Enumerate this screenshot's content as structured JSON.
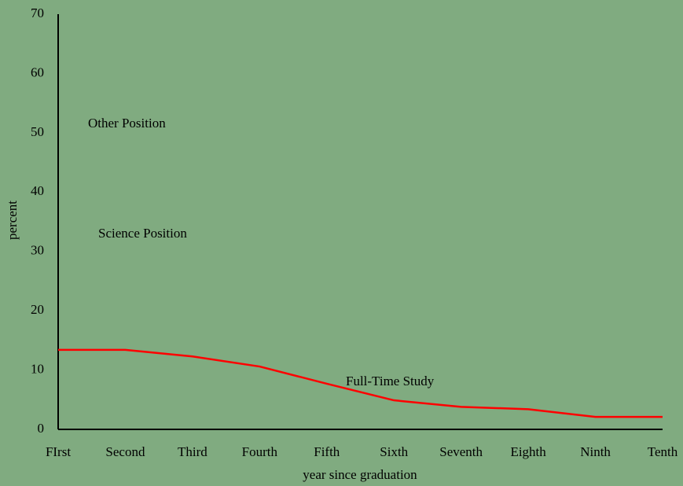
{
  "chart_data": {
    "type": "line",
    "categories": [
      "FIrst",
      "Second",
      "Third",
      "Fourth",
      "Fifth",
      "Sixth",
      "Seventh",
      "Eighth",
      "Ninth",
      "Tenth"
    ],
    "series": [
      {
        "name": "Full-Time Study",
        "color": "#ff0000",
        "values": [
          13.4,
          13.4,
          12.3,
          10.6,
          7.7,
          4.9,
          3.8,
          3.4,
          2.1,
          2.1
        ]
      }
    ],
    "ylim": [
      0,
      70
    ],
    "yticks": [
      0,
      10,
      20,
      30,
      40,
      50,
      60,
      70
    ],
    "y_label": "percent",
    "x_label": "year since graduation",
    "annotations": [
      "Other Position",
      "Science Position"
    ]
  }
}
